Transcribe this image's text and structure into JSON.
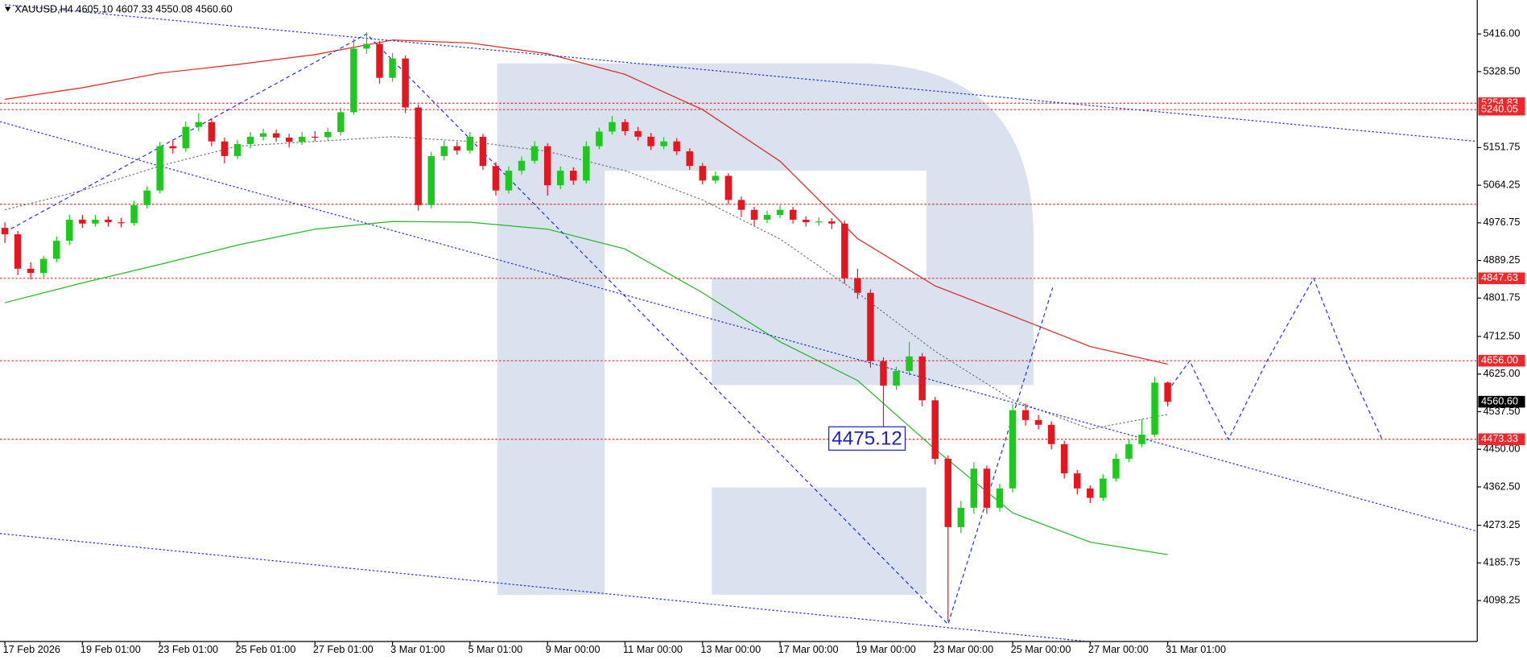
{
  "chart_data": {
    "type": "candlestick",
    "title": "XAUUSD,H4  4605.10 4607.33 4550.08 4560.60",
    "categories": [
      "17 Feb 2026",
      null,
      null,
      null,
      null,
      null,
      "19 Feb 01:00",
      null,
      null,
      null,
      null,
      null,
      "23 Feb 01:00",
      null,
      null,
      null,
      null,
      null,
      "25 Feb 01:00",
      null,
      null,
      null,
      null,
      null,
      "27 Feb 01:00",
      null,
      null,
      null,
      null,
      null,
      "3 Mar 01:00",
      null,
      null,
      null,
      null,
      null,
      "5 Mar 01:00",
      null,
      null,
      null,
      null,
      null,
      "9 Mar 00:00",
      null,
      null,
      null,
      null,
      null,
      "11 Mar 00:00",
      null,
      null,
      null,
      null,
      null,
      "13 Mar 00:00",
      null,
      null,
      null,
      null,
      null,
      "17 Mar 00:00",
      null,
      null,
      null,
      null,
      null,
      "19 Mar 00:00",
      null,
      null,
      null,
      null,
      null,
      "23 Mar 00:00",
      null,
      null,
      null,
      null,
      null,
      "25 Mar 00:00",
      null,
      null,
      null,
      null,
      null,
      "27 Mar 00:00",
      null,
      null,
      null,
      null,
      null,
      "31 Mar 01:00"
    ],
    "open": [
      4965,
      4950,
      4870,
      4860,
      4893,
      4935,
      4984,
      4975,
      4984,
      4978,
      4976,
      5018,
      5052,
      5155,
      5150,
      5200,
      5211,
      5166,
      5132,
      5160,
      5177,
      5185,
      5175,
      5165,
      5177,
      5176,
      5188,
      5234,
      5382,
      5393,
      5314,
      5359,
      5245,
      5018,
      5132,
      5155,
      5145,
      5177,
      5109,
      5052,
      5098,
      5121,
      5155,
      5064,
      5098,
      5075,
      5155,
      5189,
      5211,
      5190,
      5177,
      5155,
      5166,
      5143,
      5109,
      5075,
      5086,
      5030,
      5007,
      4984,
      4995,
      5007,
      4984,
      4978,
      4980,
      4975,
      4848,
      4814,
      4655,
      4598,
      4632,
      4666,
      4564,
      4428,
      4269,
      4314,
      4405,
      4314,
      4359,
      4541,
      4518,
      4507,
      4462,
      4394,
      4359,
      4337,
      4382,
      4428,
      4462,
      4484,
      4605.1
    ],
    "high": [
      4978,
      4958,
      4885,
      4900,
      4945,
      4995,
      4995,
      4995,
      4992,
      4988,
      5028,
      5062,
      5165,
      5168,
      5212,
      5232,
      5220,
      5175,
      5170,
      5188,
      5196,
      5194,
      5184,
      5188,
      5190,
      5198,
      5244,
      5405,
      5420,
      5400,
      5372,
      5366,
      5252,
      5142,
      5168,
      5165,
      5188,
      5184,
      5118,
      5108,
      5131,
      5166,
      5162,
      5108,
      5106,
      5166,
      5198,
      5225,
      5218,
      5200,
      5186,
      5176,
      5174,
      5150,
      5116,
      5096,
      5092,
      5038,
      5014,
      5005,
      5018,
      5014,
      4992,
      4990,
      4988,
      4982,
      4870,
      4822,
      4664,
      4642,
      4700,
      4674,
      4572,
      4436,
      4330,
      4420,
      4412,
      4370,
      4555,
      4556,
      4530,
      4515,
      4470,
      4402,
      4366,
      4392,
      4440,
      4474,
      4520,
      4618,
      4607.33
    ],
    "low": [
      4930,
      4855,
      4845,
      4850,
      4885,
      4925,
      4965,
      4968,
      4968,
      4966,
      4970,
      5010,
      5045,
      5138,
      5142,
      5190,
      5155,
      5115,
      5125,
      5150,
      5168,
      5165,
      5152,
      5158,
      5166,
      5168,
      5180,
      5228,
      5370,
      5300,
      5305,
      5232,
      5005,
      5010,
      5122,
      5135,
      5138,
      5100,
      5040,
      5045,
      5090,
      5114,
      5040,
      5055,
      5065,
      5068,
      5148,
      5182,
      5180,
      5168,
      5146,
      5148,
      5134,
      5100,
      5066,
      5068,
      5020,
      4990,
      4970,
      4976,
      4988,
      4975,
      4968,
      4970,
      4962,
      4835,
      4800,
      4640,
      4480,
      4588,
      4622,
      4550,
      4415,
      4050,
      4255,
      4300,
      4300,
      4305,
      4350,
      4505,
      4496,
      4450,
      4382,
      4345,
      4325,
      4330,
      4375,
      4420,
      4455,
      4478,
      4550.08
    ],
    "close": [
      4950,
      4870,
      4860,
      4893,
      4935,
      4984,
      4975,
      4984,
      4978,
      4976,
      5018,
      5052,
      5155,
      5150,
      5200,
      5211,
      5166,
      5132,
      5160,
      5177,
      5185,
      5175,
      5165,
      5177,
      5176,
      5188,
      5234,
      5382,
      5393,
      5314,
      5359,
      5245,
      5018,
      5132,
      5155,
      5145,
      5177,
      5109,
      5052,
      5098,
      5121,
      5155,
      5064,
      5098,
      5075,
      5155,
      5189,
      5211,
      5190,
      5177,
      5155,
      5166,
      5143,
      5109,
      5075,
      5086,
      5030,
      5007,
      4984,
      4995,
      5007,
      4984,
      4978,
      4980,
      4975,
      4848,
      4814,
      4655,
      4598,
      4632,
      4666,
      4564,
      4428,
      4269,
      4314,
      4405,
      4314,
      4359,
      4541,
      4518,
      4507,
      4462,
      4394,
      4359,
      4337,
      4382,
      4428,
      4462,
      4484,
      4605,
      4560.6
    ],
    "up_color": "#1ec81e",
    "down_color": "#e4161f",
    "ylim": [
      4003,
      5495
    ],
    "yticks": [
      {
        "value": 5416,
        "label": "5416.00"
      },
      {
        "value": 5328.5,
        "label": "5328.50"
      },
      5151.75,
      5064.25,
      4976.75,
      4889.25,
      4801.75,
      {
        "value": 4712.5,
        "label": "4712.50"
      },
      {
        "value": 4625,
        "label": "4625.00"
      },
      {
        "value": 4537.5,
        "label": "4537.50"
      },
      {
        "value": 4450,
        "label": "4450.00"
      },
      {
        "value": 4362.5,
        "label": "4362.50"
      },
      4273.25,
      4185.75,
      4098.25
    ],
    "levels": [
      5254.83,
      5240.05,
      4847.63,
      {
        "value": 4656,
        "label": "4656.00"
      },
      4473.33
    ],
    "unlabeled_levels": [
      5020
    ],
    "level_color": "#f0262a",
    "last_price": {
      "value": 4560.6,
      "label": "4560.60"
    },
    "annotation": 4475.12,
    "lines": [
      {
        "color": "#e8201e",
        "dash": "solid",
        "x": [
          0,
          6,
          12,
          18,
          24,
          30,
          36,
          42,
          48,
          54,
          60,
          66,
          72,
          78,
          84,
          90
        ],
        "values": [
          5264,
          5291,
          5325,
          5345,
          5368,
          5402,
          5395,
          5370,
          5322,
          5240,
          5120,
          4940,
          4830,
          4760,
          4689,
          4648
        ]
      },
      {
        "color": "#22b822",
        "dash": "solid",
        "x": [
          0,
          6,
          12,
          18,
          24,
          30,
          36,
          42,
          48,
          54,
          60,
          66,
          72,
          78,
          84,
          90
        ],
        "values": [
          4791,
          4837,
          4880,
          4925,
          4962,
          4980,
          4978,
          4962,
          4916,
          4814,
          4700,
          4610,
          4450,
          4302,
          4234,
          4205
        ]
      },
      {
        "color": "#777777",
        "dash": "dotted",
        "x": [
          0,
          6,
          12,
          18,
          24,
          30,
          36,
          42,
          48,
          54,
          60,
          66,
          72,
          78,
          84,
          90
        ],
        "values": [
          5007,
          5052,
          5109,
          5155,
          5166,
          5177,
          5166,
          5143,
          5098,
          5030,
          4939,
          4814,
          4678,
          4565,
          4497,
          4531
        ]
      },
      {
        "color": "#2233dd",
        "dash": "dashed",
        "x": [
          90,
          91.7,
          93.2,
          94.7,
          97.7,
          101.3,
          103.8,
          106.6
        ],
        "values": [
          4585,
          4656,
          4560,
          4473,
          4656,
          4847.63,
          4656,
          4473
        ]
      },
      {
        "color": "#2233dd",
        "dash": "dashed",
        "x": [
          0,
          28,
          73,
          81.1
        ],
        "values": [
          4955,
          5416,
          4043,
          4826
        ]
      },
      {
        "color": "#2233dd",
        "dash": "dotted",
        "x": [
          -0.38,
          114
        ],
        "values": [
          5212,
          4259
        ]
      },
      {
        "color": "#2233dd",
        "dash": "dotted",
        "x": [
          -0.38,
          83.8
        ],
        "values": [
          4254,
          4003
        ]
      },
      {
        "color": "#2233dd",
        "dash": "dotted",
        "x": [
          0,
          114
        ],
        "values": [
          5484,
          5166
        ]
      }
    ]
  }
}
